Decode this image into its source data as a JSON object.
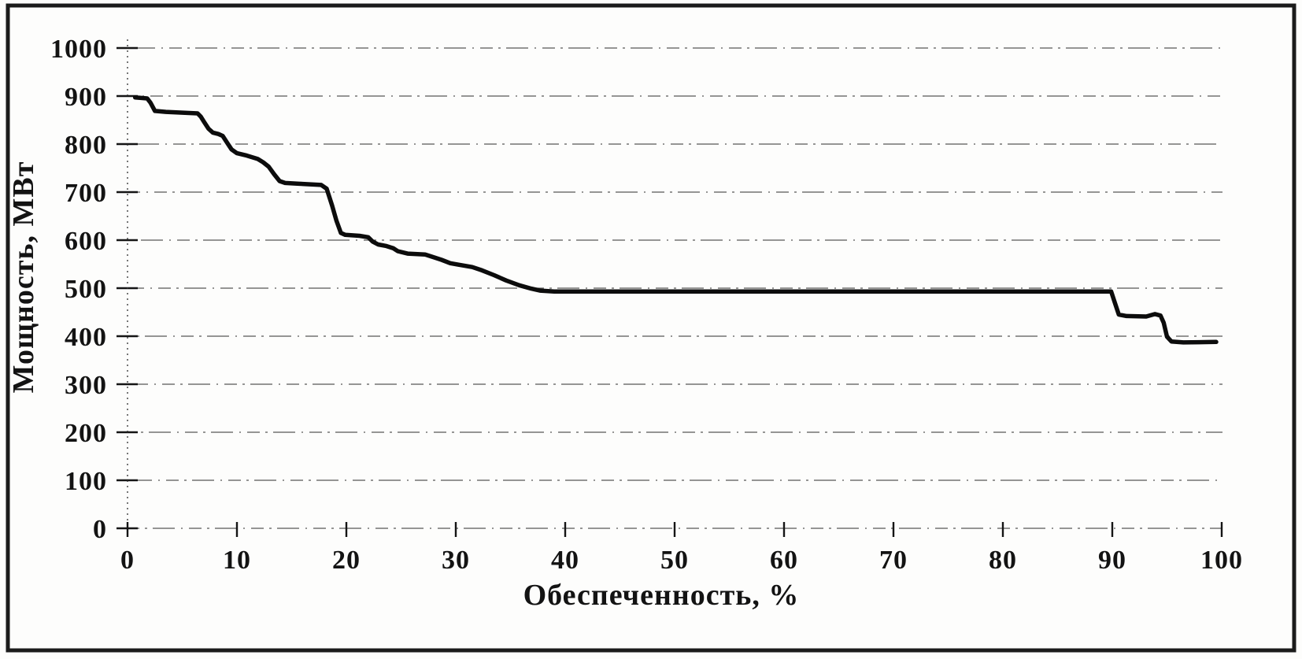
{
  "figure": {
    "style": "scanned black-and-white document figure",
    "background": "#fdfdfc",
    "ink": "#131313",
    "border_color": "#1b1b1b"
  },
  "chart_data": {
    "type": "line",
    "title": "",
    "xlabel": "Обеспеченность, %",
    "ylabel": "Мощность, МВт",
    "xlim": [
      0,
      100
    ],
    "ylim": [
      0,
      1000
    ],
    "xticks": [
      0,
      10,
      20,
      30,
      40,
      50,
      60,
      70,
      80,
      90,
      100
    ],
    "yticks": [
      0,
      100,
      200,
      300,
      400,
      500,
      600,
      700,
      800,
      900,
      1000
    ],
    "grid": "horizontal dash-dot gridlines at every 100 MW",
    "legend_position": "none",
    "line_color": "#0c0c0c",
    "points": [
      [
        0.7,
        897
      ],
      [
        1.8,
        895
      ],
      [
        2.1,
        886
      ],
      [
        2.5,
        869
      ],
      [
        3.5,
        867
      ],
      [
        6.4,
        864
      ],
      [
        6.7,
        857
      ],
      [
        7.0,
        846
      ],
      [
        7.4,
        832
      ],
      [
        7.8,
        824
      ],
      [
        8.3,
        821
      ],
      [
        8.7,
        817
      ],
      [
        9.1,
        803
      ],
      [
        9.5,
        789
      ],
      [
        10.0,
        781
      ],
      [
        10.9,
        776
      ],
      [
        11.9,
        769
      ],
      [
        12.4,
        762
      ],
      [
        12.9,
        753
      ],
      [
        13.4,
        737
      ],
      [
        13.9,
        723
      ],
      [
        14.4,
        719
      ],
      [
        16.0,
        717
      ],
      [
        17.7,
        715
      ],
      [
        18.2,
        707
      ],
      [
        18.7,
        672
      ],
      [
        19.1,
        640
      ],
      [
        19.5,
        615
      ],
      [
        19.9,
        611
      ],
      [
        21.2,
        609
      ],
      [
        22.0,
        606
      ],
      [
        22.4,
        597
      ],
      [
        22.9,
        591
      ],
      [
        23.6,
        588
      ],
      [
        24.3,
        583
      ],
      [
        24.7,
        577
      ],
      [
        25.6,
        572
      ],
      [
        27.2,
        570
      ],
      [
        27.9,
        565
      ],
      [
        28.7,
        559
      ],
      [
        29.5,
        552
      ],
      [
        30.2,
        549
      ],
      [
        31.5,
        544
      ],
      [
        32.4,
        537
      ],
      [
        33.5,
        527
      ],
      [
        34.6,
        516
      ],
      [
        35.8,
        506
      ],
      [
        36.9,
        499
      ],
      [
        37.7,
        495
      ],
      [
        39.0,
        493
      ],
      [
        89.9,
        493
      ],
      [
        90.2,
        472
      ],
      [
        90.6,
        445
      ],
      [
        91.3,
        442
      ],
      [
        93.1,
        441
      ],
      [
        93.9,
        446
      ],
      [
        94.4,
        443
      ],
      [
        94.7,
        428
      ],
      [
        95.0,
        399
      ],
      [
        95.4,
        389
      ],
      [
        96.5,
        387
      ],
      [
        99.5,
        388
      ]
    ]
  }
}
